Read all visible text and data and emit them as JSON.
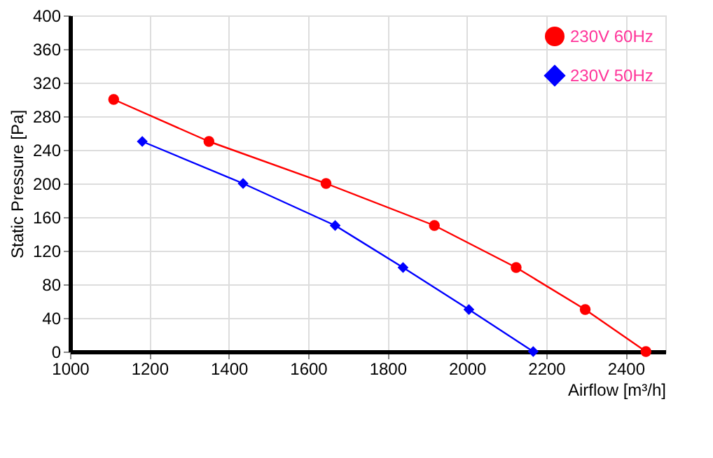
{
  "chart_data": {
    "type": "line",
    "xlabel": "Airflow [m³/h]",
    "ylabel": "Static Pressure [Pa]",
    "xlim": [
      1000,
      2500
    ],
    "xticks": [
      1000,
      1200,
      1400,
      1600,
      1800,
      2000,
      2200,
      2400
    ],
    "ylim": [
      0,
      400
    ],
    "yticks": [
      0,
      40,
      80,
      120,
      160,
      200,
      240,
      280,
      320,
      360,
      400
    ],
    "grid": true,
    "legend": "top right",
    "series": [
      {
        "name": "230V 60Hz",
        "color": "#ff0000",
        "marker": "circle",
        "x": [
          1110,
          1350,
          1645,
          1918,
          2124,
          2298,
          2451
        ],
        "values": [
          300,
          250,
          200,
          150,
          100,
          50,
          0
        ]
      },
      {
        "name": "230V 50Hz",
        "color": "#0000ff",
        "marker": "diamond",
        "x": [
          1182,
          1436,
          1668,
          1839,
          2005,
          2167
        ],
        "values": [
          250,
          200,
          150,
          100,
          50,
          0
        ]
      }
    ]
  }
}
